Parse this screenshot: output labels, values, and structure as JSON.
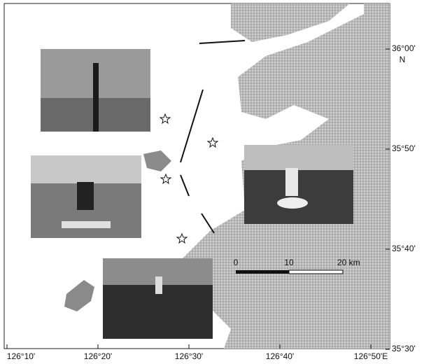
{
  "map": {
    "lon_ticks": [
      "126°10'",
      "126°20'",
      "126°30'",
      "126°40'",
      "126°50'E"
    ],
    "lat_ticks": [
      "36°00'",
      "35°50'",
      "35°40'",
      "35°30'"
    ],
    "north_label": "N",
    "scale_bar": [
      "0",
      "10",
      "20 km"
    ]
  }
}
